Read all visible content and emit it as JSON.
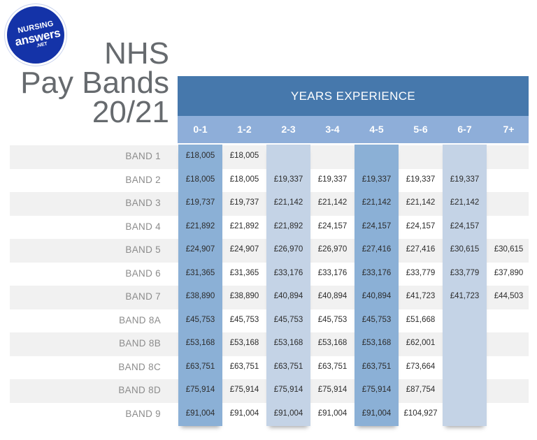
{
  "logo": {
    "line1": "NURSING",
    "line2": "answers",
    "line3": ".NET"
  },
  "title": {
    "line1": "NHS",
    "line2": "Pay Bands",
    "line3": "20/21"
  },
  "header": {
    "years_label": "YEARS EXPERIENCE"
  },
  "columns": [
    "0-1",
    "1-2",
    "2-3",
    "3-4",
    "4-5",
    "5-6",
    "6-7",
    "7+"
  ],
  "colors": {
    "header_bg": "#4678ac",
    "subheader_bg": "#8eaed9",
    "stripe": "#f1f1f1",
    "col_dark": "#8bb0d6",
    "col_light": "#c4d3e6"
  },
  "rows": [
    {
      "band": "BAND 1",
      "values": [
        "£18,005",
        "£18,005",
        "",
        "",
        "",
        "",
        "",
        ""
      ]
    },
    {
      "band": "BAND 2",
      "values": [
        "£18,005",
        "£18,005",
        "£19,337",
        "£19,337",
        "£19,337",
        "£19,337",
        "£19,337",
        ""
      ]
    },
    {
      "band": "BAND 3",
      "values": [
        "£19,737",
        "£19,737",
        "£21,142",
        "£21,142",
        "£21,142",
        "£21,142",
        "£21,142",
        ""
      ]
    },
    {
      "band": "BAND 4",
      "values": [
        "£21,892",
        "£21,892",
        "£21,892",
        "£24,157",
        "£24,157",
        "£24,157",
        "£24,157",
        ""
      ]
    },
    {
      "band": "BAND 5",
      "values": [
        "£24,907",
        "£24,907",
        "£26,970",
        "£26,970",
        "£27,416",
        "£27,416",
        "£30,615",
        "£30,615"
      ]
    },
    {
      "band": "BAND 6",
      "values": [
        "£31,365",
        "£31,365",
        "£33,176",
        "£33,176",
        "£33,176",
        "£33,779",
        "£33,779",
        "£37,890"
      ]
    },
    {
      "band": "BAND 7",
      "values": [
        "£38,890",
        "£38,890",
        "£40,894",
        "£40,894",
        "£40,894",
        "£41,723",
        "£41,723",
        "£44,503"
      ]
    },
    {
      "band": "BAND 8A",
      "values": [
        "£45,753",
        "£45,753",
        "£45,753",
        "£45,753",
        "£45,753",
        "£51,668",
        "",
        ""
      ]
    },
    {
      "band": "BAND 8B",
      "values": [
        "£53,168",
        "£53,168",
        "£53,168",
        "£53,168",
        "£53,168",
        "£62,001",
        "",
        ""
      ]
    },
    {
      "band": "BAND 8C",
      "values": [
        "£63,751",
        "£63,751",
        "£63,751",
        "£63,751",
        "£63,751",
        "£73,664",
        "",
        ""
      ]
    },
    {
      "band": "BAND 8D",
      "values": [
        "£75,914",
        "£75,914",
        "£75,914",
        "£75,914",
        "£75,914",
        "£87,754",
        "",
        ""
      ]
    },
    {
      "band": "BAND 9",
      "values": [
        "£91,004",
        "£91,004",
        "£91,004",
        "£91,004",
        "£91,004",
        "£104,927",
        "",
        ""
      ]
    }
  ]
}
